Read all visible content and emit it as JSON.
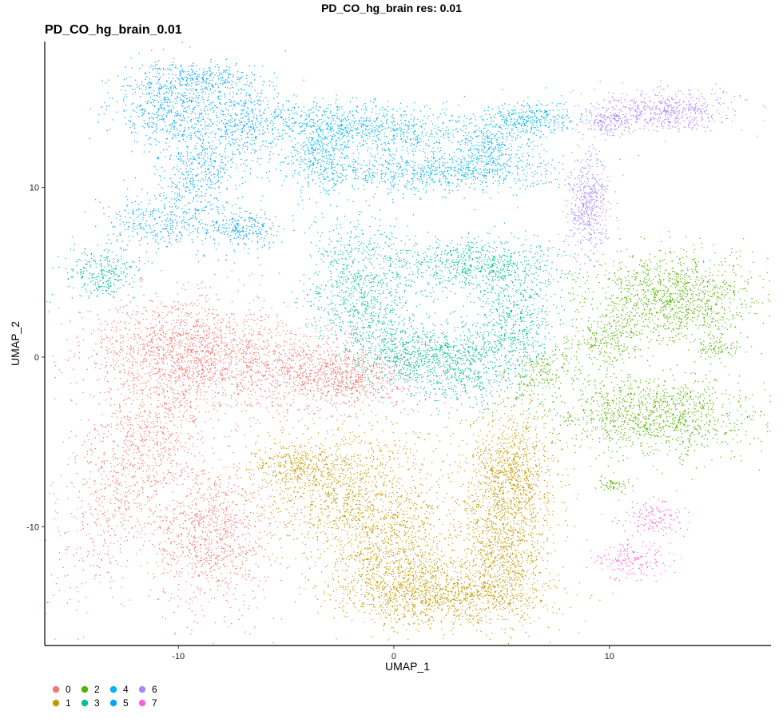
{
  "chart_data": {
    "type": "scatter",
    "suptitle": "PD_CO_hg_brain res: 0.01",
    "title": "PD_CO_hg_brain_0.01",
    "xlabel": "UMAP_1",
    "ylabel": "UMAP_2",
    "xlim": [
      -16.2,
      17.5
    ],
    "ylim": [
      -17.0,
      18.6
    ],
    "xticks": [
      -10,
      0,
      10
    ],
    "yticks": [
      -10,
      0,
      10
    ],
    "grid": false,
    "legend_placement": "bottom-left",
    "point_size": 0.7,
    "series": [
      {
        "name": "0",
        "color": "#F8766D",
        "regions": [
          {
            "x": -11.5,
            "y": -5.0,
            "sx": 1.3,
            "sy": 4.5,
            "rot": -20,
            "n": 1400
          },
          {
            "x": -8.5,
            "y": -10.5,
            "sx": 1.4,
            "sy": 2.2,
            "rot": 0,
            "n": 1000
          },
          {
            "x": -6.0,
            "y": -0.5,
            "sx": 3.5,
            "sy": 1.4,
            "rot": -8,
            "n": 1400
          },
          {
            "x": -10.5,
            "y": 0.5,
            "sx": 2.0,
            "sy": 1.5,
            "rot": 0,
            "n": 700
          },
          {
            "x": -2.5,
            "y": -1.2,
            "sx": 1.4,
            "sy": 0.9,
            "rot": 0,
            "n": 500
          }
        ]
      },
      {
        "name": "1",
        "color": "#C49A00",
        "regions": [
          {
            "x": -2.0,
            "y": -8.0,
            "sx": 2.2,
            "sy": 2.0,
            "rot": 0,
            "n": 1200
          },
          {
            "x": 0.0,
            "y": -12.0,
            "sx": 1.4,
            "sy": 1.8,
            "rot": 0,
            "n": 900
          },
          {
            "x": 2.5,
            "y": -14.0,
            "sx": 2.5,
            "sy": 0.9,
            "rot": 0,
            "n": 1000
          },
          {
            "x": 5.0,
            "y": -11.5,
            "sx": 1.1,
            "sy": 2.0,
            "rot": 0,
            "n": 900
          },
          {
            "x": 5.5,
            "y": -7.0,
            "sx": 1.0,
            "sy": 2.0,
            "rot": 0,
            "n": 1000
          },
          {
            "x": -4.5,
            "y": -6.5,
            "sx": 1.0,
            "sy": 0.7,
            "rot": 0,
            "n": 300
          }
        ]
      },
      {
        "name": "2",
        "color": "#53B400",
        "regions": [
          {
            "x": 13.0,
            "y": 3.5,
            "sx": 2.0,
            "sy": 1.3,
            "rot": 0,
            "n": 1200
          },
          {
            "x": 12.0,
            "y": -3.5,
            "sx": 2.4,
            "sy": 1.2,
            "rot": 0,
            "n": 1200
          },
          {
            "x": 10.0,
            "y": 1.0,
            "sx": 0.8,
            "sy": 0.9,
            "rot": 0,
            "n": 250
          },
          {
            "x": 7.0,
            "y": -0.8,
            "sx": 1.2,
            "sy": 0.6,
            "rot": 40,
            "n": 200
          },
          {
            "x": 15.0,
            "y": 0.5,
            "sx": 0.6,
            "sy": 0.3,
            "rot": 0,
            "n": 80
          },
          {
            "x": 10.2,
            "y": -7.5,
            "sx": 0.4,
            "sy": 0.2,
            "rot": 0,
            "n": 60
          }
        ]
      },
      {
        "name": "3",
        "color": "#00C094",
        "regions": [
          {
            "x": -1.5,
            "y": 4.0,
            "sx": 1.3,
            "sy": 2.0,
            "rot": 0,
            "n": 900
          },
          {
            "x": 0.5,
            "y": 0.2,
            "sx": 1.2,
            "sy": 1.0,
            "rot": 0,
            "n": 500
          },
          {
            "x": 4.0,
            "y": 5.5,
            "sx": 2.0,
            "sy": 0.8,
            "rot": 0,
            "n": 700
          },
          {
            "x": 5.5,
            "y": 2.0,
            "sx": 1.0,
            "sy": 1.7,
            "rot": 0,
            "n": 600
          },
          {
            "x": 3.0,
            "y": -0.5,
            "sx": 1.3,
            "sy": 1.2,
            "rot": 0,
            "n": 600
          },
          {
            "x": -13.5,
            "y": 5.0,
            "sx": 0.9,
            "sy": 0.8,
            "rot": 0,
            "n": 300
          }
        ]
      },
      {
        "name": "4",
        "color": "#00B6EB",
        "regions": [
          {
            "x": -1.5,
            "y": 13.5,
            "sx": 2.6,
            "sy": 0.8,
            "rot": -5,
            "n": 900
          },
          {
            "x": 1.5,
            "y": 10.8,
            "sx": 3.0,
            "sy": 0.6,
            "rot": 0,
            "n": 800
          },
          {
            "x": 4.5,
            "y": 12.5,
            "sx": 1.0,
            "sy": 1.0,
            "rot": 0,
            "n": 400
          },
          {
            "x": 6.5,
            "y": 14.0,
            "sx": 1.0,
            "sy": 0.5,
            "rot": 0,
            "n": 300
          },
          {
            "x": -3.5,
            "y": 12.0,
            "sx": 0.8,
            "sy": 1.0,
            "rot": 0,
            "n": 300
          }
        ]
      },
      {
        "name": "5",
        "color": "#06A4FF",
        "regions": [
          {
            "x": -10.5,
            "y": 15.0,
            "sx": 1.2,
            "sy": 1.2,
            "rot": 0,
            "n": 600
          },
          {
            "x": -7.0,
            "y": 14.0,
            "sx": 1.0,
            "sy": 1.2,
            "rot": 0,
            "n": 400
          },
          {
            "x": -9.0,
            "y": 11.0,
            "sx": 1.0,
            "sy": 1.7,
            "rot": 0,
            "n": 500
          },
          {
            "x": -11.0,
            "y": 8.0,
            "sx": 1.1,
            "sy": 0.8,
            "rot": 0,
            "n": 300
          },
          {
            "x": -7.0,
            "y": 7.5,
            "sx": 0.9,
            "sy": 0.6,
            "rot": 0,
            "n": 250
          },
          {
            "x": -8.5,
            "y": 16.5,
            "sx": 1.2,
            "sy": 0.4,
            "rot": 0,
            "n": 200
          }
        ]
      },
      {
        "name": "6",
        "color": "#A58AFF",
        "regions": [
          {
            "x": 12.5,
            "y": 14.5,
            "sx": 1.6,
            "sy": 0.6,
            "rot": 0,
            "n": 600
          },
          {
            "x": 9.0,
            "y": 9.0,
            "sx": 0.5,
            "sy": 1.5,
            "rot": 0,
            "n": 500
          },
          {
            "x": 10.0,
            "y": 13.8,
            "sx": 0.6,
            "sy": 0.4,
            "rot": 0,
            "n": 150
          }
        ]
      },
      {
        "name": "7",
        "color": "#FB61D7",
        "regions": [
          {
            "x": 12.0,
            "y": -9.5,
            "sx": 0.8,
            "sy": 0.5,
            "rot": 0,
            "n": 150
          },
          {
            "x": 11.0,
            "y": -12.0,
            "sx": 0.9,
            "sy": 0.6,
            "rot": 0,
            "n": 180
          }
        ]
      }
    ]
  }
}
